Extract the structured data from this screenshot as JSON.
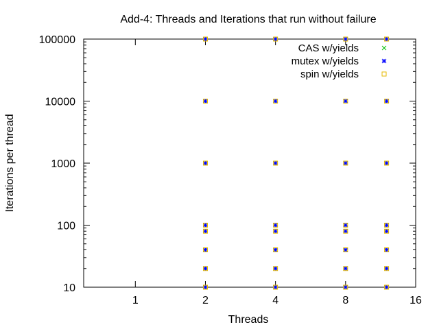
{
  "chart_data": {
    "type": "scatter",
    "title": "Add-4: Threads and Iterations that run without failure",
    "xlabel": "Threads",
    "ylabel": "Iterations per thread",
    "x_scale": "log2",
    "y_scale": "log10",
    "xlim": [
      0.6,
      16
    ],
    "ylim": [
      10,
      100000
    ],
    "x_ticks": [
      1,
      2,
      4,
      8,
      16
    ],
    "x_tick_labels": [
      "1",
      "2",
      "4",
      "8",
      "16"
    ],
    "y_ticks": [
      10,
      100,
      1000,
      10000,
      100000
    ],
    "y_tick_labels": [
      "10",
      "100",
      "1000",
      "10000",
      "100000"
    ],
    "grid": false,
    "legend_position": "top-right",
    "series": [
      {
        "name": "CAS w/yields",
        "marker": "x",
        "color": "#00c000",
        "points": [
          [
            2,
            10
          ],
          [
            2,
            20
          ],
          [
            2,
            40
          ],
          [
            2,
            80
          ],
          [
            2,
            100
          ],
          [
            2,
            1000
          ],
          [
            2,
            10000
          ],
          [
            2,
            100000
          ],
          [
            4,
            10
          ],
          [
            4,
            20
          ],
          [
            4,
            40
          ],
          [
            4,
            80
          ],
          [
            4,
            100
          ],
          [
            4,
            1000
          ],
          [
            4,
            10000
          ],
          [
            4,
            100000
          ],
          [
            8,
            10
          ],
          [
            8,
            20
          ],
          [
            8,
            40
          ],
          [
            8,
            80
          ],
          [
            8,
            100
          ],
          [
            8,
            1000
          ],
          [
            8,
            10000
          ],
          [
            8,
            100000
          ],
          [
            12,
            10
          ],
          [
            12,
            20
          ],
          [
            12,
            40
          ],
          [
            12,
            80
          ],
          [
            12,
            100
          ],
          [
            12,
            1000
          ],
          [
            12,
            10000
          ],
          [
            12,
            100000
          ]
        ]
      },
      {
        "name": "mutex w/yields",
        "marker": "asterisk",
        "color": "#0000ff",
        "points": [
          [
            2,
            10
          ],
          [
            2,
            20
          ],
          [
            2,
            40
          ],
          [
            2,
            80
          ],
          [
            2,
            100
          ],
          [
            2,
            1000
          ],
          [
            2,
            10000
          ],
          [
            2,
            100000
          ],
          [
            4,
            10
          ],
          [
            4,
            20
          ],
          [
            4,
            40
          ],
          [
            4,
            80
          ],
          [
            4,
            100
          ],
          [
            4,
            1000
          ],
          [
            4,
            10000
          ],
          [
            4,
            100000
          ],
          [
            8,
            10
          ],
          [
            8,
            20
          ],
          [
            8,
            40
          ],
          [
            8,
            80
          ],
          [
            8,
            100
          ],
          [
            8,
            1000
          ],
          [
            8,
            10000
          ],
          [
            8,
            100000
          ],
          [
            12,
            10
          ],
          [
            12,
            20
          ],
          [
            12,
            40
          ],
          [
            12,
            80
          ],
          [
            12,
            100
          ],
          [
            12,
            1000
          ],
          [
            12,
            10000
          ],
          [
            12,
            100000
          ]
        ]
      },
      {
        "name": "spin w/yields",
        "marker": "square",
        "color": "#e6b800",
        "points": [
          [
            2,
            10
          ],
          [
            2,
            20
          ],
          [
            2,
            40
          ],
          [
            2,
            80
          ],
          [
            2,
            100
          ],
          [
            2,
            1000
          ],
          [
            2,
            10000
          ],
          [
            2,
            100000
          ],
          [
            4,
            10
          ],
          [
            4,
            20
          ],
          [
            4,
            40
          ],
          [
            4,
            80
          ],
          [
            4,
            100
          ],
          [
            4,
            1000
          ],
          [
            4,
            10000
          ],
          [
            4,
            100000
          ],
          [
            8,
            10
          ],
          [
            8,
            20
          ],
          [
            8,
            40
          ],
          [
            8,
            80
          ],
          [
            8,
            100
          ],
          [
            8,
            1000
          ],
          [
            8,
            10000
          ],
          [
            8,
            100000
          ],
          [
            12,
            10
          ],
          [
            12,
            20
          ],
          [
            12,
            40
          ],
          [
            12,
            80
          ],
          [
            12,
            100
          ],
          [
            12,
            1000
          ],
          [
            12,
            10000
          ],
          [
            12,
            100000
          ]
        ]
      }
    ]
  }
}
